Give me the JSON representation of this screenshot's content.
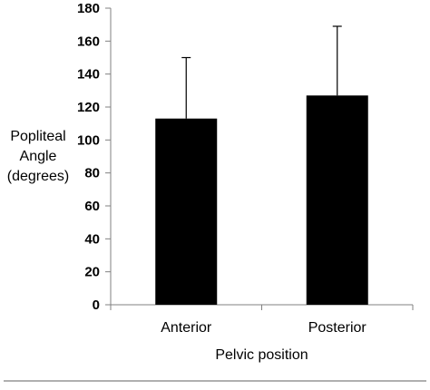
{
  "chart_data": {
    "type": "bar",
    "categories": [
      "Anterior",
      "Posterior"
    ],
    "values": [
      113,
      127
    ],
    "error_bars_upper": [
      150,
      169
    ],
    "xlabel": "Pelvic position",
    "ylabel_lines": [
      "Popliteal",
      "Angle",
      "(degrees)"
    ],
    "ylim": [
      0,
      180
    ],
    "yticks": [
      "0",
      "20",
      "40",
      "60",
      "80",
      "100",
      "120",
      "140",
      "160",
      "180"
    ],
    "grid": false,
    "bar_color": "#000000"
  }
}
